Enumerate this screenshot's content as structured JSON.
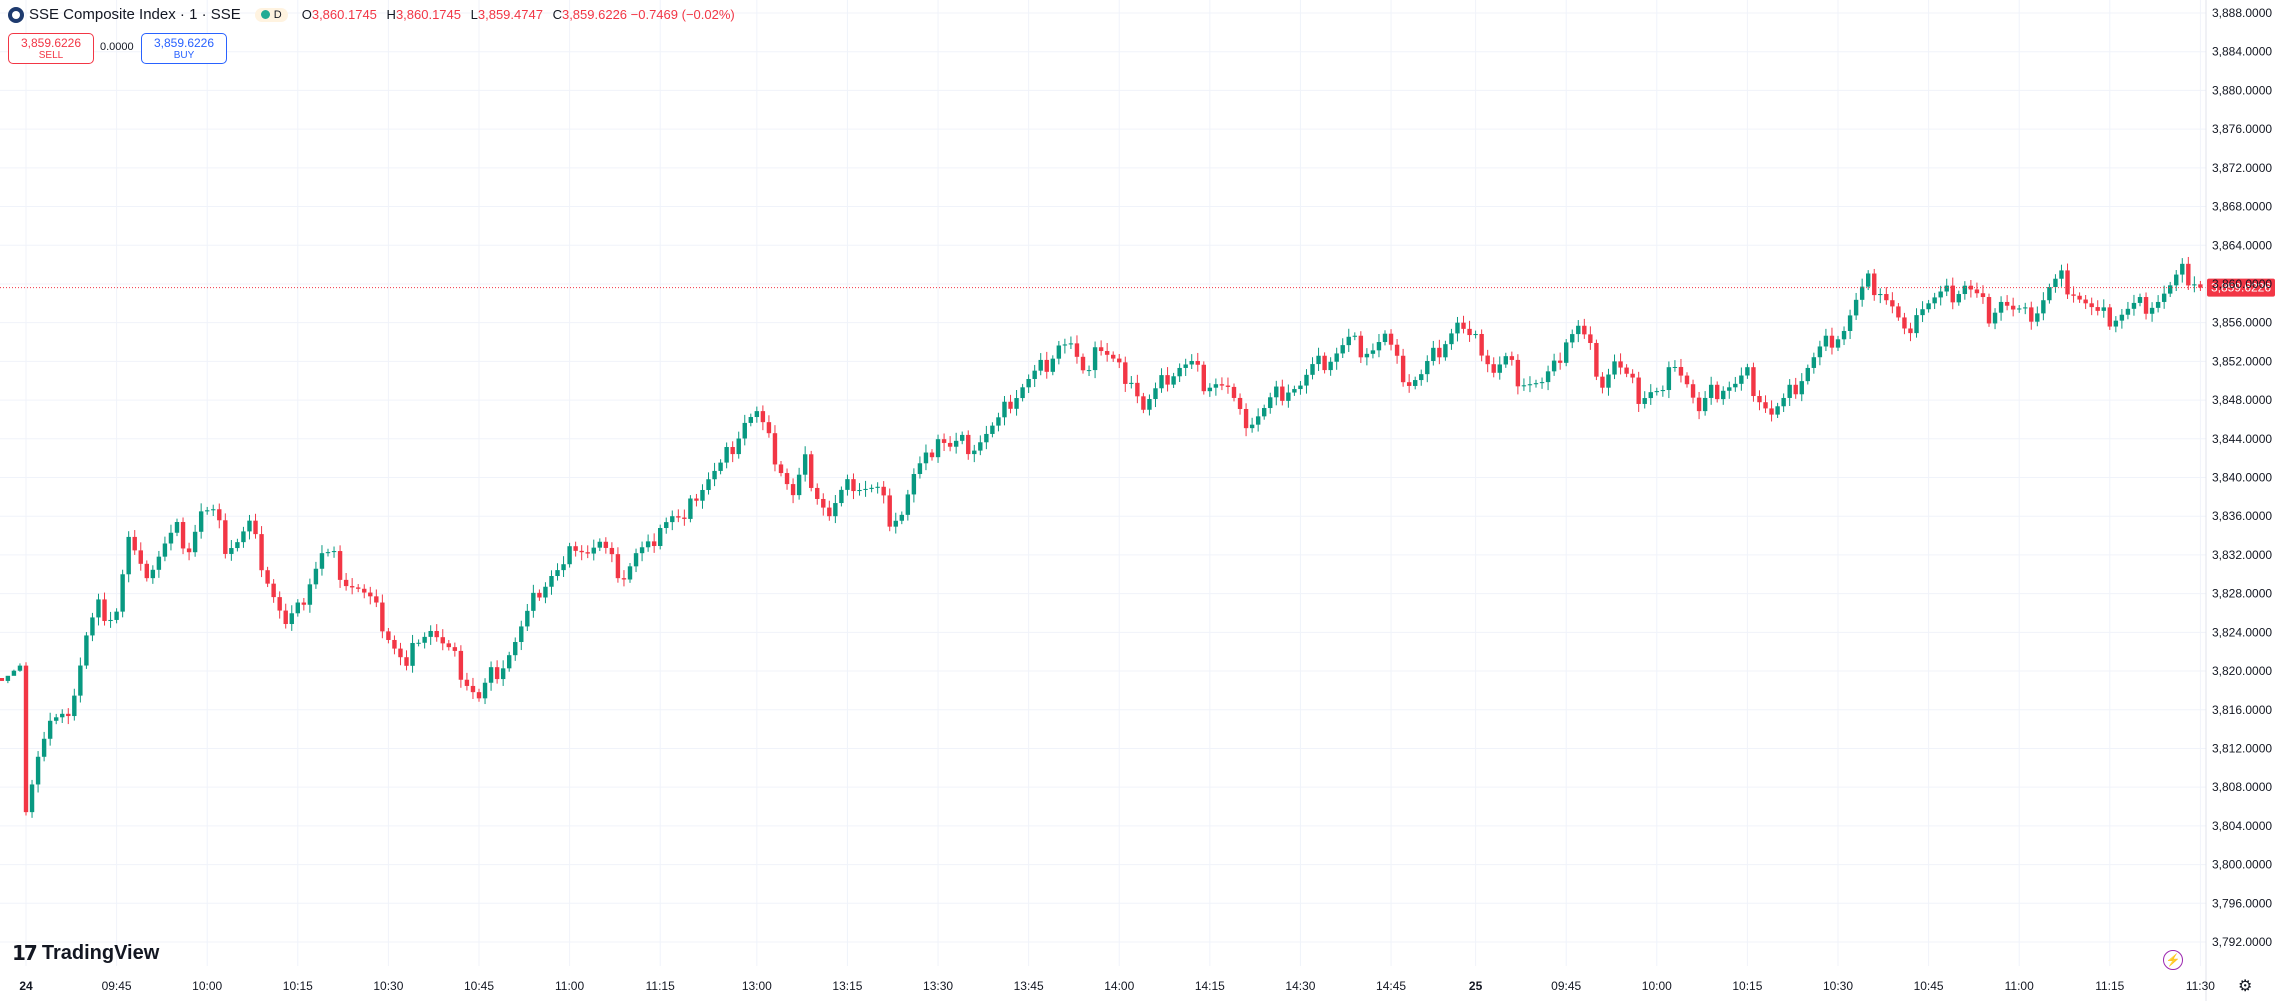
{
  "header": {
    "title": "SSE Composite Index · 1 · SSE",
    "badge": "D",
    "ohlc": [
      {
        "k": "O",
        "v": "3,860.1745"
      },
      {
        "k": "H",
        "v": "3,860.1745"
      },
      {
        "k": "L",
        "v": "3,859.4747"
      },
      {
        "k": "C",
        "v": "3,859.6226 −0.7469 (−0.02%)"
      }
    ]
  },
  "trade": {
    "sell_price": "3,859.6226",
    "sell_label": "SELL",
    "spread": "0.0000",
    "buy_price": "3,859.6226",
    "buy_label": "BUY"
  },
  "branding": {
    "logo_text": "TradingView"
  },
  "colors": {
    "up": "#089981",
    "down": "#f23645",
    "grid": "#f0f3fa",
    "last_price": "#f23645"
  },
  "chart_data": {
    "type": "candlestick",
    "last_price": 3859.6226,
    "last_price_label": "3,859.6226",
    "ylim": [
      3790,
      3889
    ],
    "y_ticks": [
      3888,
      3884,
      3880,
      3876,
      3872,
      3868,
      3864,
      3860,
      3856,
      3852,
      3848,
      3844,
      3840,
      3836,
      3832,
      3828,
      3824,
      3820,
      3816,
      3812,
      3808,
      3804,
      3800,
      3796,
      3792
    ],
    "y_tick_labels": [
      "3,888.0000",
      "3,884.0000",
      "3,880.0000",
      "3,876.0000",
      "3,872.0000",
      "3,868.0000",
      "3,864.0000",
      "3,860.0000",
      "3,856.0000",
      "3,852.0000",
      "3,848.0000",
      "3,844.0000",
      "3,840.0000",
      "3,836.0000",
      "3,832.0000",
      "3,828.0000",
      "3,824.0000",
      "3,820.0000",
      "3,816.0000",
      "3,812.0000",
      "3,808.0000",
      "3,804.0000",
      "3,800.0000",
      "3,796.0000",
      "3,792.0000"
    ],
    "x_ticks": [
      {
        "label": "24",
        "bar": 0,
        "bold": true
      },
      {
        "label": "09:45",
        "bar": 15
      },
      {
        "label": "10:00",
        "bar": 30
      },
      {
        "label": "10:15",
        "bar": 45
      },
      {
        "label": "10:30",
        "bar": 60
      },
      {
        "label": "10:45",
        "bar": 75
      },
      {
        "label": "11:00",
        "bar": 90
      },
      {
        "label": "11:15",
        "bar": 105
      },
      {
        "label": "13:00",
        "bar": 121
      },
      {
        "label": "13:15",
        "bar": 136
      },
      {
        "label": "13:30",
        "bar": 151
      },
      {
        "label": "13:45",
        "bar": 166
      },
      {
        "label": "14:00",
        "bar": 181
      },
      {
        "label": "14:15",
        "bar": 196
      },
      {
        "label": "14:30",
        "bar": 211
      },
      {
        "label": "14:45",
        "bar": 226
      },
      {
        "label": "25",
        "bar": 240,
        "bold": true
      },
      {
        "label": "09:45",
        "bar": 255
      },
      {
        "label": "10:00",
        "bar": 270
      },
      {
        "label": "10:15",
        "bar": 285
      },
      {
        "label": "10:30",
        "bar": 300
      },
      {
        "label": "10:45",
        "bar": 315
      },
      {
        "label": "11:00",
        "bar": 330
      },
      {
        "label": "11:15",
        "bar": 345
      },
      {
        "label": "11:30",
        "bar": 360
      }
    ],
    "first_bar_index": -4,
    "close_path": [
      [
        -4,
        3821.5
      ],
      [
        -1,
        3822.0
      ],
      [
        0,
        3806.5
      ],
      [
        2,
        3811.5
      ],
      [
        4,
        3814.5
      ],
      [
        6,
        3814.5
      ],
      [
        8,
        3818.0
      ],
      [
        10,
        3823.5
      ],
      [
        12,
        3826.5
      ],
      [
        14,
        3826.0
      ],
      [
        15,
        3826.5
      ],
      [
        17,
        3833.5
      ],
      [
        19,
        3830.0
      ],
      [
        21,
        3831.0
      ],
      [
        23,
        3833.0
      ],
      [
        25,
        3834.5
      ],
      [
        27,
        3833.0
      ],
      [
        29,
        3836.5
      ],
      [
        31,
        3836.0
      ],
      [
        33,
        3833.0
      ],
      [
        35,
        3833.5
      ],
      [
        37,
        3835.0
      ],
      [
        39,
        3831.5
      ],
      [
        41,
        3828.0
      ],
      [
        43,
        3824.5
      ],
      [
        45,
        3826.0
      ],
      [
        47,
        3829.5
      ],
      [
        49,
        3832.0
      ],
      [
        51,
        3831.5
      ],
      [
        53,
        3829.5
      ],
      [
        55,
        3828.5
      ],
      [
        57,
        3827.0
      ],
      [
        59,
        3825.0
      ],
      [
        61,
        3822.5
      ],
      [
        63,
        3820.0
      ],
      [
        65,
        3824.0
      ],
      [
        67,
        3824.5
      ],
      [
        69,
        3822.5
      ],
      [
        71,
        3821.0
      ],
      [
        73,
        3819.0
      ],
      [
        75,
        3817.0
      ],
      [
        77,
        3819.5
      ],
      [
        79,
        3821.0
      ],
      [
        81,
        3823.0
      ],
      [
        83,
        3825.5
      ],
      [
        85,
        3828.5
      ],
      [
        87,
        3830.0
      ],
      [
        89,
        3830.5
      ],
      [
        91,
        3833.5
      ],
      [
        93,
        3832.5
      ],
      [
        95,
        3833.0
      ],
      [
        97,
        3831.0
      ],
      [
        99,
        3830.0
      ],
      [
        101,
        3832.0
      ],
      [
        103,
        3832.5
      ],
      [
        105,
        3835.5
      ],
      [
        107,
        3836.0
      ],
      [
        109,
        3835.0
      ],
      [
        111,
        3838.5
      ],
      [
        113,
        3840.0
      ],
      [
        115,
        3841.0
      ],
      [
        117,
        3843.5
      ],
      [
        119,
        3846.0
      ],
      [
        121,
        3846.5
      ],
      [
        123,
        3843.5
      ],
      [
        125,
        3841.0
      ],
      [
        127,
        3838.0
      ],
      [
        129,
        3841.5
      ],
      [
        131,
        3838.5
      ],
      [
        133,
        3836.0
      ],
      [
        135,
        3838.0
      ],
      [
        137,
        3839.5
      ],
      [
        139,
        3839.0
      ],
      [
        141,
        3838.5
      ],
      [
        143,
        3836.0
      ],
      [
        145,
        3836.5
      ],
      [
        147,
        3840.0
      ],
      [
        149,
        3841.5
      ],
      [
        151,
        3844.5
      ],
      [
        153,
        3843.0
      ],
      [
        155,
        3843.5
      ],
      [
        157,
        3843.5
      ],
      [
        159,
        3844.5
      ],
      [
        161,
        3845.5
      ],
      [
        163,
        3848.0
      ],
      [
        165,
        3849.5
      ],
      [
        167,
        3850.5
      ],
      [
        169,
        3852.0
      ],
      [
        171,
        3854.0
      ],
      [
        173,
        3853.5
      ],
      [
        175,
        3850.0
      ],
      [
        177,
        3854.0
      ],
      [
        179,
        3852.5
      ],
      [
        181,
        3851.0
      ],
      [
        183,
        3850.5
      ],
      [
        185,
        3847.0
      ],
      [
        187,
        3848.5
      ],
      [
        189,
        3850.5
      ],
      [
        191,
        3851.5
      ],
      [
        193,
        3851.5
      ],
      [
        195,
        3850.0
      ],
      [
        197,
        3850.0
      ],
      [
        199,
        3849.0
      ],
      [
        201,
        3846.0
      ],
      [
        203,
        3846.0
      ],
      [
        205,
        3847.0
      ],
      [
        207,
        3848.5
      ],
      [
        209,
        3849.5
      ],
      [
        211,
        3849.5
      ],
      [
        213,
        3851.0
      ],
      [
        215,
        3852.0
      ],
      [
        217,
        3853.0
      ],
      [
        219,
        3854.0
      ],
      [
        221,
        3853.5
      ],
      [
        223,
        3853.5
      ],
      [
        225,
        3854.5
      ],
      [
        227,
        3851.5
      ],
      [
        229,
        3850.0
      ],
      [
        231,
        3850.5
      ],
      [
        233,
        3852.5
      ],
      [
        235,
        3854.5
      ],
      [
        237,
        3856.0
      ],
      [
        239,
        3854.0
      ],
      [
        241,
        3853.5
      ],
      [
        243,
        3851.0
      ],
      [
        245,
        3852.0
      ],
      [
        247,
        3850.5
      ],
      [
        249,
        3850.0
      ],
      [
        251,
        3849.5
      ],
      [
        253,
        3851.0
      ],
      [
        255,
        3854.5
      ],
      [
        257,
        3855.5
      ],
      [
        259,
        3853.0
      ],
      [
        261,
        3850.0
      ],
      [
        263,
        3852.0
      ],
      [
        265,
        3850.0
      ],
      [
        267,
        3848.5
      ],
      [
        269,
        3849.0
      ],
      [
        271,
        3848.5
      ],
      [
        273,
        3852.5
      ],
      [
        275,
        3850.0
      ],
      [
        277,
        3846.5
      ],
      [
        279,
        3848.5
      ],
      [
        281,
        3849.5
      ],
      [
        283,
        3849.5
      ],
      [
        285,
        3850.5
      ],
      [
        287,
        3848.5
      ],
      [
        289,
        3846.5
      ],
      [
        291,
        3847.5
      ],
      [
        293,
        3849.5
      ],
      [
        295,
        3851.5
      ],
      [
        297,
        3853.0
      ],
      [
        299,
        3854.5
      ],
      [
        301,
        3855.5
      ],
      [
        303,
        3858.0
      ],
      [
        305,
        3860.0
      ],
      [
        307,
        3859.5
      ],
      [
        309,
        3857.5
      ],
      [
        311,
        3854.5
      ],
      [
        313,
        3857.5
      ],
      [
        315,
        3858.0
      ],
      [
        317,
        3858.5
      ],
      [
        319,
        3859.0
      ],
      [
        321,
        3860.0
      ],
      [
        323,
        3858.5
      ],
      [
        325,
        3857.0
      ],
      [
        327,
        3858.5
      ],
      [
        329,
        3857.0
      ],
      [
        331,
        3856.5
      ],
      [
        333,
        3857.5
      ],
      [
        335,
        3859.5
      ],
      [
        337,
        3860.5
      ],
      [
        339,
        3859.5
      ],
      [
        341,
        3858.0
      ],
      [
        343,
        3856.5
      ],
      [
        345,
        3856.5
      ],
      [
        347,
        3857.0
      ],
      [
        349,
        3857.5
      ],
      [
        351,
        3858.0
      ],
      [
        353,
        3858.5
      ],
      [
        355,
        3859.5
      ],
      [
        357,
        3861.0
      ],
      [
        359,
        3860.5
      ],
      [
        360,
        3859.6226
      ]
    ]
  }
}
